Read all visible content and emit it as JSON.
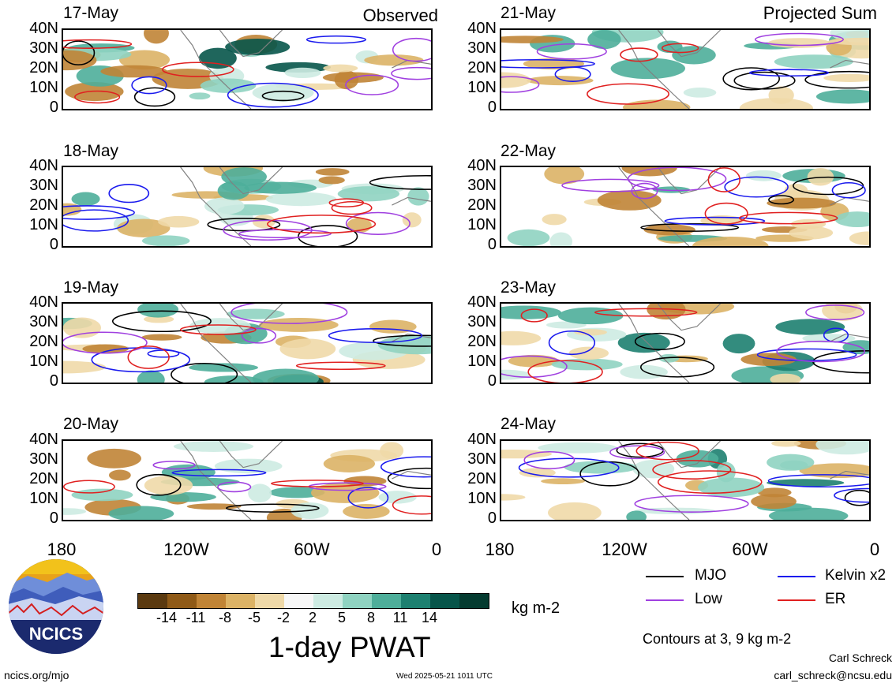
{
  "header": {
    "left_label": "Observed",
    "right_label": "Projected Sum"
  },
  "left_dates": [
    "17-May",
    "18-May",
    "19-May",
    "20-May"
  ],
  "right_dates": [
    "21-May",
    "22-May",
    "23-May",
    "24-May"
  ],
  "y_ticks": [
    "40N",
    "30N",
    "20N",
    "10N",
    "0"
  ],
  "x_ticks": [
    "180",
    "120W",
    "60W",
    "0"
  ],
  "legend": {
    "mjo": "MJO",
    "kelvin": "Kelvin x2",
    "low": "Low",
    "er": "ER",
    "colors": {
      "mjo": "#000000",
      "kelvin": "#1a1aee",
      "low": "#a040e0",
      "er": "#e02020"
    }
  },
  "colorbar": {
    "ticks": [
      "-14",
      "-11",
      "-8",
      "-5",
      "-2",
      "2",
      "5",
      "8",
      "11",
      "14"
    ],
    "unit": "kg m-2",
    "colors": [
      "#5b3a10",
      "#8f5a17",
      "#c08436",
      "#dcb366",
      "#efd9a8",
      "#f7f7f7",
      "#cdebe2",
      "#8fd3c1",
      "#4eae9a",
      "#1d8070",
      "#07554a",
      "#053b30"
    ]
  },
  "title": "1-day PWAT",
  "contours_note": "Contours at 3, 9 kg m-2",
  "author": "Carl Schreck",
  "email": "carl_schreck@ncsu.edu",
  "site": "ncics.org/mjo",
  "timestamp": "Wed 2025-05-21 1011 UTC",
  "logo_text": "NCICS"
}
